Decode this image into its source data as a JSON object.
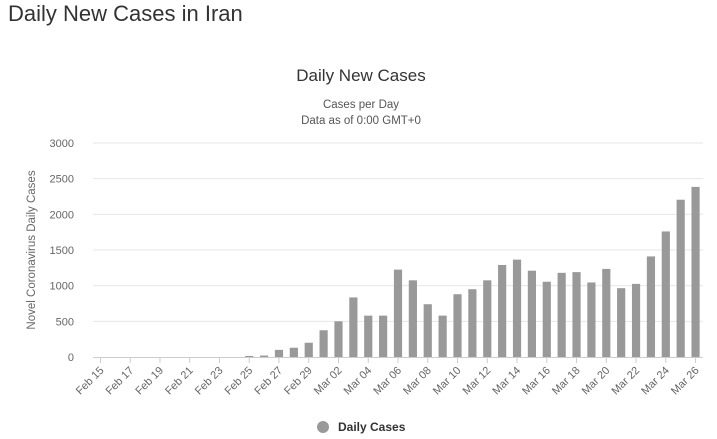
{
  "page": {
    "heading": "Daily New Cases in Iran"
  },
  "chart_data": {
    "type": "bar",
    "title": "Daily New Cases",
    "subtitle": "Cases per Day",
    "subtitle2": "Data as of 0:00 GMT+0",
    "xlabel": "",
    "ylabel": "Novel Coronavirus Daily Cases",
    "ylim": [
      0,
      3000
    ],
    "yticks": [
      0,
      500,
      1000,
      1500,
      2000,
      2500,
      3000
    ],
    "grid": true,
    "legend_position": "bottom-center",
    "bar_color": "#999999",
    "categories": [
      "Feb 15",
      "Feb 16",
      "Feb 17",
      "Feb 18",
      "Feb 19",
      "Feb 20",
      "Feb 21",
      "Feb 22",
      "Feb 23",
      "Feb 24",
      "Feb 25",
      "Feb 26",
      "Feb 27",
      "Feb 28",
      "Feb 29",
      "Mar 01",
      "Mar 02",
      "Mar 03",
      "Mar 04",
      "Mar 05",
      "Mar 06",
      "Mar 07",
      "Mar 08",
      "Mar 09",
      "Mar 10",
      "Mar 11",
      "Mar 12",
      "Mar 13",
      "Mar 14",
      "Mar 15",
      "Mar 16",
      "Mar 17",
      "Mar 18",
      "Mar 19",
      "Mar 20",
      "Mar 21",
      "Mar 22",
      "Mar 23",
      "Mar 24",
      "Mar 25",
      "Mar 26"
    ],
    "tick_labels": [
      "Feb 15",
      "Feb 17",
      "Feb 19",
      "Feb 21",
      "Feb 23",
      "Feb 25",
      "Feb 27",
      "Feb 29",
      "Mar 02",
      "Mar 04",
      "Mar 06",
      "Mar 08",
      "Mar 10",
      "Mar 12",
      "Mar 14",
      "Mar 16",
      "Mar 18",
      "Mar 20",
      "Mar 22",
      "Mar 24",
      "Mar 26"
    ],
    "series": [
      {
        "name": "Daily Cases",
        "values": [
          0,
          0,
          0,
          0,
          0,
          0,
          0,
          0,
          0,
          0,
          15,
          20,
          100,
          130,
          200,
          375,
          500,
          835,
          580,
          580,
          1225,
          1075,
          740,
          580,
          880,
          950,
          1075,
          1290,
          1365,
          1210,
          1055,
          1180,
          1190,
          1045,
          1235,
          965,
          1025,
          1410,
          1760,
          2205,
          2385
        ]
      }
    ]
  }
}
